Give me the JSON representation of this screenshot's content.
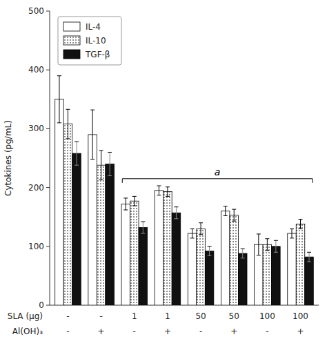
{
  "chart_data": {
    "type": "bar",
    "categories": [
      "-",
      "-",
      "1",
      "1",
      "50",
      "50",
      "100",
      "100"
    ],
    "categories_row2": [
      "-",
      "+",
      "-",
      "+",
      "-",
      "+",
      "-",
      "+"
    ],
    "category_labels": [
      "SLA (μg)",
      "Al(OH)₃"
    ],
    "series": [
      {
        "name": "IL-4",
        "color": "#ffffff",
        "values": [
          350,
          290,
          172,
          195,
          122,
          160,
          103,
          122
        ],
        "errors": [
          40,
          42,
          10,
          8,
          8,
          8,
          18,
          8
        ]
      },
      {
        "name": "IL-10",
        "color": "#ffffff",
        "values": [
          308,
          238,
          177,
          193,
          130,
          153,
          103,
          138
        ],
        "errors": [
          25,
          25,
          8,
          8,
          10,
          10,
          10,
          8
        ]
      },
      {
        "name": "TGF-β",
        "color": "#111111",
        "values": [
          258,
          240,
          132,
          157,
          92,
          88,
          100,
          82
        ],
        "errors": [
          20,
          20,
          10,
          10,
          8,
          8,
          10,
          8
        ]
      }
    ],
    "ylabel": "Cytokines (pg/mL)",
    "ylim": [
      0,
      500
    ],
    "yticks": [
      0,
      100,
      200,
      300,
      400,
      500
    ],
    "annotations": [
      {
        "text": "a",
        "y": 215,
        "from_category": 2,
        "to_category": 7
      }
    ],
    "legend": "upper left",
    "grid": false
  }
}
